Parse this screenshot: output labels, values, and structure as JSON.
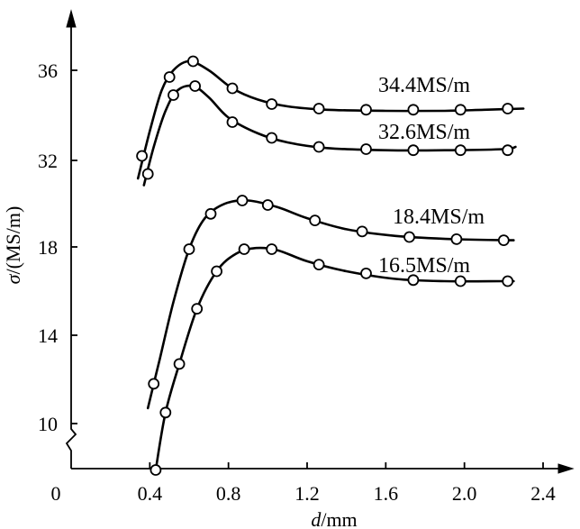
{
  "chart_data": {
    "type": "line",
    "xlabel_italic": "d",
    "xlabel_unit": "/mm",
    "ylabel_italic": "σ",
    "ylabel_unit": "/(MS/m)",
    "x_ticks": [
      "0",
      "0.4",
      "0.8",
      "1.2",
      "1.6",
      "2.0",
      "2.4"
    ],
    "y_ticks": [
      "10",
      "14",
      "18",
      "32",
      "36"
    ],
    "xlim": [
      0,
      2.4
    ],
    "y_axis_note": "broken axis: lower segment 8–20, upper segment 30–38",
    "series": [
      {
        "name": "34.4MS/m",
        "points": [
          [
            0.36,
            32.2
          ],
          [
            0.5,
            35.7
          ],
          [
            0.62,
            36.4
          ],
          [
            0.82,
            35.2
          ],
          [
            1.02,
            34.5
          ],
          [
            1.26,
            34.3
          ],
          [
            1.5,
            34.25
          ],
          [
            1.74,
            34.25
          ],
          [
            1.98,
            34.25
          ],
          [
            2.22,
            34.3
          ]
        ],
        "curve": [
          [
            0.34,
            31.2
          ],
          [
            0.4,
            33.3
          ],
          [
            0.46,
            35.1
          ],
          [
            0.52,
            36.0
          ],
          [
            0.6,
            36.4
          ],
          [
            0.7,
            36.0
          ],
          [
            0.82,
            35.2
          ],
          [
            0.95,
            34.7
          ],
          [
            1.1,
            34.4
          ],
          [
            1.3,
            34.25
          ],
          [
            1.6,
            34.2
          ],
          [
            1.9,
            34.2
          ],
          [
            2.1,
            34.25
          ],
          [
            2.3,
            34.3
          ]
        ]
      },
      {
        "name": "32.6MS/m",
        "points": [
          [
            0.39,
            31.4
          ],
          [
            0.52,
            34.9
          ],
          [
            0.63,
            35.3
          ],
          [
            0.82,
            33.7
          ],
          [
            1.02,
            33.0
          ],
          [
            1.26,
            32.6
          ],
          [
            1.5,
            32.5
          ],
          [
            1.74,
            32.45
          ],
          [
            1.98,
            32.45
          ],
          [
            2.22,
            32.45
          ]
        ],
        "curve": [
          [
            0.37,
            30.9
          ],
          [
            0.42,
            32.6
          ],
          [
            0.48,
            34.2
          ],
          [
            0.54,
            35.1
          ],
          [
            0.62,
            35.3
          ],
          [
            0.7,
            34.8
          ],
          [
            0.8,
            33.9
          ],
          [
            0.95,
            33.2
          ],
          [
            1.1,
            32.8
          ],
          [
            1.3,
            32.55
          ],
          [
            1.6,
            32.45
          ],
          [
            1.9,
            32.45
          ],
          [
            2.2,
            32.5
          ],
          [
            2.26,
            32.6
          ]
        ]
      },
      {
        "name": "18.4MS/m",
        "points": [
          [
            0.42,
            11.8
          ],
          [
            0.6,
            17.9
          ],
          [
            0.71,
            19.5
          ],
          [
            0.87,
            20.1
          ],
          [
            1.0,
            19.9
          ],
          [
            1.24,
            19.2
          ],
          [
            1.48,
            18.7
          ],
          [
            1.72,
            18.45
          ],
          [
            1.96,
            18.35
          ],
          [
            2.2,
            18.3
          ]
        ],
        "curve": [
          [
            0.39,
            10.7
          ],
          [
            0.45,
            12.9
          ],
          [
            0.52,
            15.5
          ],
          [
            0.6,
            17.9
          ],
          [
            0.68,
            19.3
          ],
          [
            0.78,
            19.95
          ],
          [
            0.9,
            20.1
          ],
          [
            1.05,
            19.8
          ],
          [
            1.2,
            19.3
          ],
          [
            1.4,
            18.8
          ],
          [
            1.65,
            18.5
          ],
          [
            1.95,
            18.35
          ],
          [
            2.25,
            18.3
          ]
        ]
      },
      {
        "name": "16.5MS/m",
        "points": [
          [
            0.43,
            7.9
          ],
          [
            0.48,
            10.5
          ],
          [
            0.55,
            12.7
          ],
          [
            0.64,
            15.2
          ],
          [
            0.74,
            16.9
          ],
          [
            0.88,
            17.9
          ],
          [
            1.02,
            17.9
          ],
          [
            1.26,
            17.2
          ],
          [
            1.5,
            16.8
          ],
          [
            1.74,
            16.5
          ],
          [
            1.98,
            16.45
          ],
          [
            2.22,
            16.45
          ]
        ],
        "curve": [
          [
            0.43,
            7.9
          ],
          [
            0.48,
            10.5
          ],
          [
            0.55,
            12.7
          ],
          [
            0.64,
            15.2
          ],
          [
            0.74,
            16.9
          ],
          [
            0.84,
            17.7
          ],
          [
            0.94,
            17.95
          ],
          [
            1.05,
            17.85
          ],
          [
            1.2,
            17.35
          ],
          [
            1.4,
            16.9
          ],
          [
            1.65,
            16.55
          ],
          [
            1.9,
            16.45
          ],
          [
            2.2,
            16.45
          ],
          [
            2.25,
            16.45
          ]
        ]
      }
    ]
  }
}
